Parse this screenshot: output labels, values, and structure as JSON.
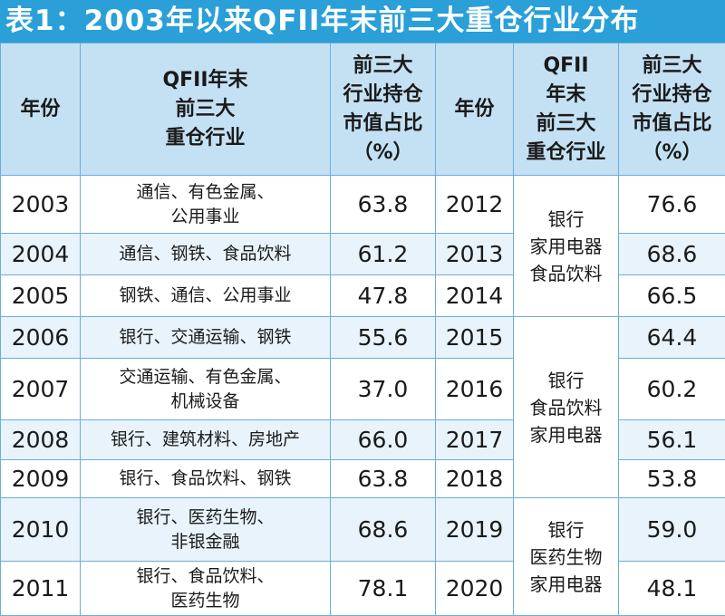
{
  "title": "表1：2003年以来QFII年末前三大重仓行业分布",
  "headers": {
    "year": "年份",
    "industry_lines": [
      "QFII年末",
      "前三大",
      "重仓行业"
    ],
    "ratio_lines": [
      "前三大",
      "行业持仓",
      "市值占比",
      "（%）"
    ],
    "year2": "年份",
    "industry2_lines": [
      "QFII",
      "年末",
      "前三大",
      "重仓行业"
    ],
    "ratio2_lines": [
      "前三大",
      "行业持仓",
      "市值占比",
      "（%）"
    ]
  },
  "left_rows": [
    {
      "year": "2003",
      "industry_lines": [
        "通信、有色金属、",
        "公用事业"
      ],
      "ratio": "63.8"
    },
    {
      "year": "2004",
      "industry_lines": [
        "通信、钢铁、食品饮料"
      ],
      "ratio": "61.2"
    },
    {
      "year": "2005",
      "industry_lines": [
        "钢铁、通信、公用事业"
      ],
      "ratio": "47.8"
    },
    {
      "year": "2006",
      "industry_lines": [
        "银行、交通运输、钢铁"
      ],
      "ratio": "55.6"
    },
    {
      "year": "2007",
      "industry_lines": [
        "交通运输、有色金属、",
        "机械设备"
      ],
      "ratio": "37.0"
    },
    {
      "year": "2008",
      "industry_lines": [
        "银行、建筑材料、房地产"
      ],
      "ratio": "66.0"
    },
    {
      "year": "2009",
      "industry_lines": [
        "银行、食品饮料、钢铁"
      ],
      "ratio": "63.8"
    },
    {
      "year": "2010",
      "industry_lines": [
        "银行、医药生物、",
        "非银金融"
      ],
      "ratio": "68.6"
    },
    {
      "year": "2011",
      "industry_lines": [
        "银行、食品饮料、",
        "医药生物"
      ],
      "ratio": "78.1"
    }
  ],
  "right_years": [
    "2012",
    "2013",
    "2014",
    "2015",
    "2016",
    "2017",
    "2018",
    "2019",
    "2020"
  ],
  "right_ratios": [
    "76.6",
    "68.6",
    "66.5",
    "64.4",
    "60.2",
    "56.1",
    "53.8",
    "59.0",
    "48.1"
  ],
  "right_groups": [
    {
      "lines": [
        "银行",
        "家用电器",
        "食品饮料"
      ]
    },
    {
      "lines": [
        "银行",
        "食品饮料",
        "家用电器"
      ]
    },
    {
      "lines": [
        "银行",
        "医药生物",
        "家用电器"
      ]
    }
  ],
  "colors": {
    "title_bg": "#2a9fd8",
    "header_bg": "#c4e1f4",
    "row_tint": "#e8f3fb",
    "border": "#6aaedb"
  }
}
